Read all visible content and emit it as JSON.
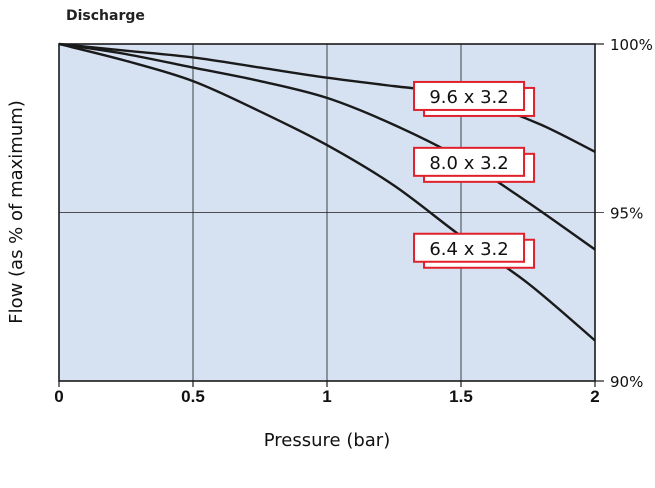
{
  "chart_data": {
    "type": "line",
    "title": "Discharge",
    "xlabel": "Pressure (bar)",
    "ylabel": "Flow (as % of maximum)",
    "xlim": [
      0,
      2
    ],
    "ylim": [
      90,
      100
    ],
    "x_ticks": [
      "0",
      "0.5",
      "1",
      "1.5",
      "2"
    ],
    "y_ticks": [
      "90%",
      "95%",
      "100%"
    ],
    "grid": true,
    "background_color": "#d6e2f2",
    "line_color": "#1a1a1a",
    "label_border_color": "#e0202a",
    "series": [
      {
        "name": "9.6 x 3.2",
        "x": [
          0,
          0.25,
          0.5,
          0.75,
          1.0,
          1.25,
          1.4,
          1.6,
          1.8,
          2.0
        ],
        "y": [
          100,
          99.8,
          99.6,
          99.3,
          99.0,
          98.75,
          98.6,
          98.2,
          97.6,
          96.8
        ]
      },
      {
        "name": "8.0 x 3.2",
        "x": [
          0,
          0.25,
          0.5,
          0.75,
          1.0,
          1.25,
          1.5,
          1.75,
          2.0
        ],
        "y": [
          100,
          99.7,
          99.3,
          98.9,
          98.4,
          97.6,
          96.6,
          95.3,
          93.9
        ]
      },
      {
        "name": "6.4 x 3.2",
        "x": [
          0,
          0.25,
          0.5,
          0.75,
          1.0,
          1.25,
          1.5,
          1.75,
          2.0
        ],
        "y": [
          100,
          99.5,
          98.9,
          98.0,
          97.0,
          95.8,
          94.3,
          92.9,
          91.2
        ]
      }
    ]
  }
}
